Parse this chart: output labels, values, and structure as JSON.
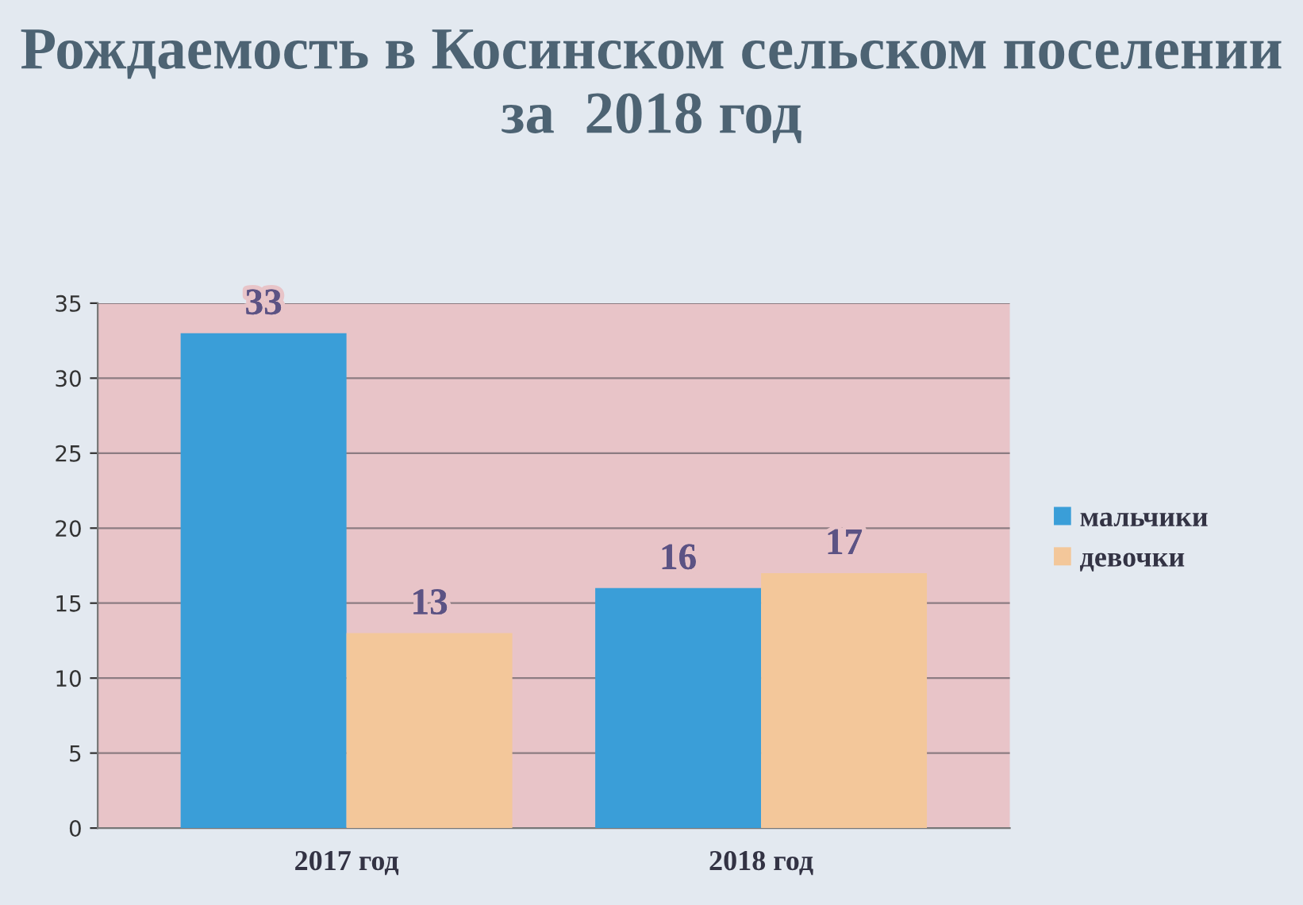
{
  "chart_data": {
    "type": "bar",
    "title": "Рождаемость в Косинском сельском поселении\nза  2018 год",
    "categories": [
      "2017 год",
      "2018 год"
    ],
    "series": [
      {
        "name": "мальчики",
        "color": "#3a9ed8",
        "values": [
          33,
          16
        ]
      },
      {
        "name": "девочки",
        "color": "#f3c79a",
        "values": [
          13,
          17
        ]
      }
    ],
    "ylim": [
      0,
      35
    ],
    "yticks": [
      0,
      5,
      10,
      15,
      20,
      25,
      30,
      35
    ],
    "grid": "y",
    "legend": "right",
    "data_labels": true
  }
}
